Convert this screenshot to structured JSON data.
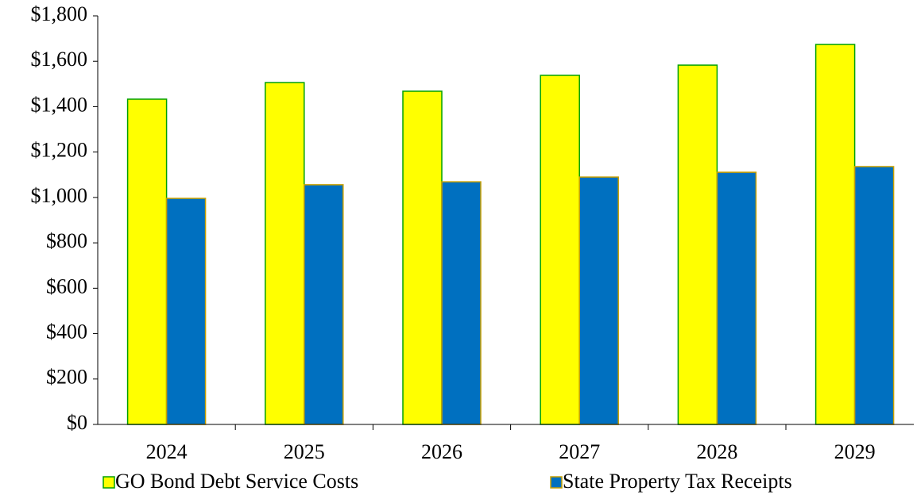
{
  "chart_data": {
    "type": "bar",
    "categories": [
      "2024",
      "2025",
      "2026",
      "2027",
      "2028",
      "2029"
    ],
    "series": [
      {
        "name": "GO Bond Debt Service Costs",
        "color": "#ffff00",
        "values": [
          1433,
          1506,
          1468,
          1538,
          1583,
          1674
        ]
      },
      {
        "name": "State Property Tax Receipts",
        "color": "#0070c0",
        "values": [
          996,
          1056,
          1069,
          1090,
          1111,
          1136
        ]
      }
    ],
    "ylim": [
      0,
      1800
    ],
    "yticks": [
      {
        "value": 0,
        "label": "$0"
      },
      {
        "value": 200,
        "label": "$200"
      },
      {
        "value": 400,
        "label": "$400"
      },
      {
        "value": 600,
        "label": "$600"
      },
      {
        "value": 800,
        "label": "$800"
      },
      {
        "value": 1000,
        "label": "$1,000"
      },
      {
        "value": 1200,
        "label": "$1,200"
      },
      {
        "value": 1400,
        "label": "$1,400"
      },
      {
        "value": 1600,
        "label": "$1,600"
      },
      {
        "value": 1800,
        "label": "$1,800"
      }
    ],
    "grid": false,
    "legend": "bottom"
  }
}
